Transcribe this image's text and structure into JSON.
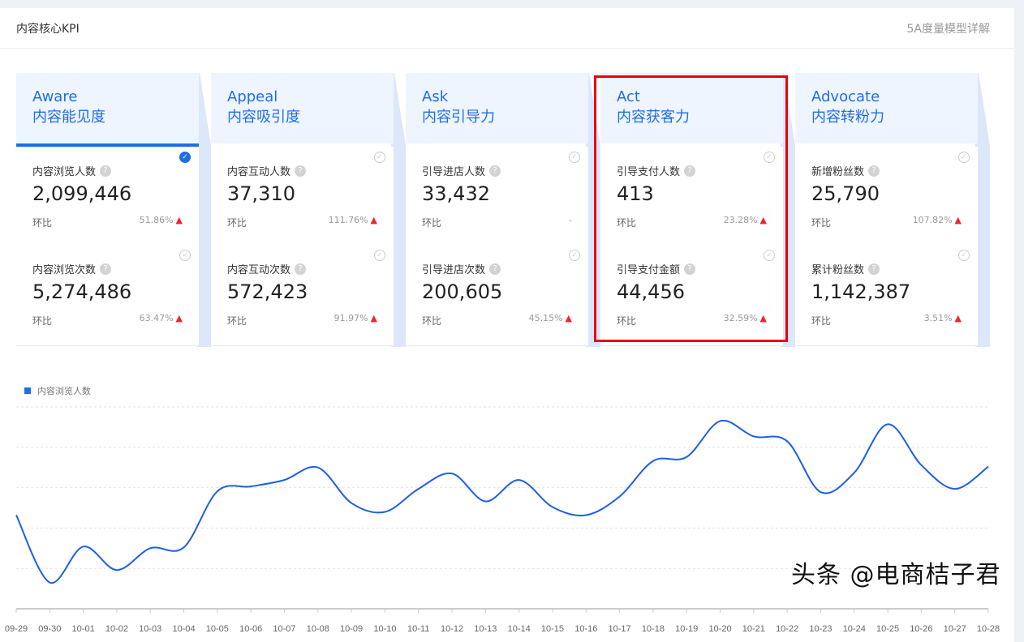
{
  "header": {
    "title": "内容核心KPI",
    "link": "5A度量模型详解"
  },
  "columns": [
    {
      "en": "Aware",
      "cn": "内容能见度",
      "active": true,
      "metrics": [
        {
          "label": "内容浏览人数",
          "value": "2,099,446",
          "hb": "环比",
          "pct": "51.86%",
          "trend": "up",
          "checked": true
        },
        {
          "label": "内容浏览次数",
          "value": "5,274,486",
          "hb": "环比",
          "pct": "63.47%",
          "trend": "up",
          "checked": false
        }
      ]
    },
    {
      "en": "Appeal",
      "cn": "内容吸引度",
      "active": false,
      "metrics": [
        {
          "label": "内容互动人数",
          "value": "37,310",
          "hb": "环比",
          "pct": "111.76%",
          "trend": "up",
          "checked": false
        },
        {
          "label": "内容互动次数",
          "value": "572,423",
          "hb": "环比",
          "pct": "91.97%",
          "trend": "up",
          "checked": false
        }
      ]
    },
    {
      "en": "Ask",
      "cn": "内容引导力",
      "active": false,
      "metrics": [
        {
          "label": "引导进店人数",
          "value": "33,432",
          "hb": "环比",
          "pct": "-",
          "trend": "none",
          "checked": false
        },
        {
          "label": "引导进店次数",
          "value": "200,605",
          "hb": "环比",
          "pct": "45.15%",
          "trend": "up",
          "checked": false
        }
      ]
    },
    {
      "en": "Act",
      "cn": "内容获客力",
      "active": false,
      "highlighted": true,
      "metrics": [
        {
          "label": "引导支付人数",
          "value": "413",
          "hb": "环比",
          "pct": "23.28%",
          "trend": "up",
          "checked": false
        },
        {
          "label": "引导支付金额",
          "value": "44,456",
          "hb": "环比",
          "pct": "32.59%",
          "trend": "up",
          "checked": false
        }
      ]
    },
    {
      "en": "Advocate",
      "cn": "内容转粉力",
      "active": false,
      "metrics": [
        {
          "label": "新增粉丝数",
          "value": "25,790",
          "hb": "环比",
          "pct": "107.82%",
          "trend": "up",
          "checked": false
        },
        {
          "label": "累计粉丝数",
          "value": "1,142,387",
          "hb": "环比",
          "pct": "3.51%",
          "trend": "up",
          "checked": false
        }
      ]
    }
  ],
  "colors": {
    "accent": "#1f6ee8",
    "up": "#f5222d",
    "highlight": "#e60012"
  },
  "chart_data": {
    "type": "line",
    "smooth": true,
    "grid": true,
    "legend_position": "top-left",
    "series": [
      {
        "name": "内容浏览人数",
        "values": [
          2.32,
          0.65,
          1.54,
          0.96,
          1.5,
          1.52,
          2.91,
          3.03,
          3.19,
          3.5,
          2.62,
          2.4,
          2.97,
          3.35,
          2.66,
          3.19,
          2.52,
          2.32,
          2.78,
          3.66,
          3.76,
          4.65,
          4.27,
          4.15,
          2.89,
          3.37,
          4.57,
          3.56,
          2.97,
          3.52
        ]
      }
    ],
    "categories": [
      "09-29",
      "09-30",
      "10-01",
      "10-02",
      "10-03",
      "10-04",
      "10-05",
      "10-06",
      "10-07",
      "10-08",
      "10-09",
      "10-10",
      "10-11",
      "10-12",
      "10-13",
      "10-14",
      "10-15",
      "10-16",
      "10-17",
      "10-18",
      "10-19",
      "10-20",
      "10-21",
      "10-22",
      "10-23",
      "10-24",
      "10-25",
      "10-26",
      "10-27",
      "10-28"
    ],
    "ylim": [
      0,
      5
    ]
  },
  "watermark": "头条 @电商桔子君"
}
